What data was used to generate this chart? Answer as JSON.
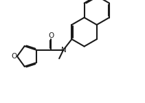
{
  "bg_color": "#ffffff",
  "line_color": "#1a1a1a",
  "line_width": 1.5,
  "figsize": [
    2.11,
    1.5
  ],
  "dpi": 100,
  "xlim": [
    0,
    10.5
  ],
  "ylim": [
    0,
    7.5
  ]
}
